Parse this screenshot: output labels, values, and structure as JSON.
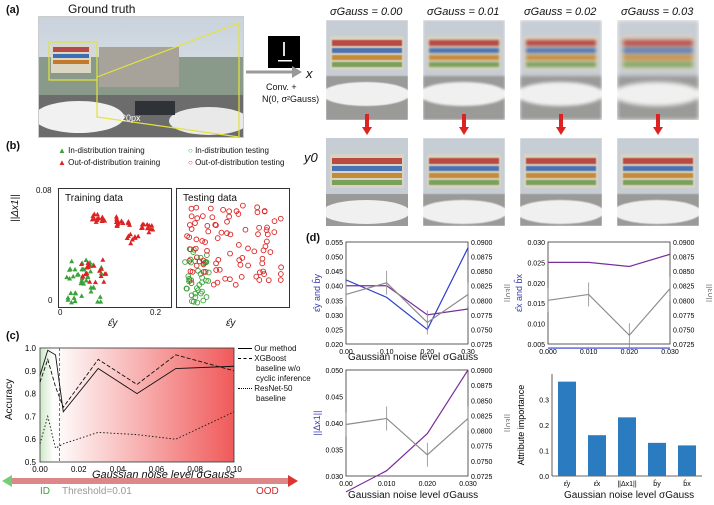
{
  "panel_a": {
    "letter": "(a)",
    "ground_truth_title": "Ground truth",
    "scale_label": "20px",
    "arrow_label": "Conv. +",
    "noise_label": "N(0, σ²Gauss)",
    "row_x_label": "x",
    "row_y_label": "y0",
    "sigma_titles": [
      "σGauss = 0.00",
      "σGauss = 0.01",
      "σGauss = 0.02",
      "σGauss = 0.03"
    ]
  },
  "panel_b": {
    "letter": "(b)",
    "legend": [
      "In-distribution training",
      "Out-of-distribution training",
      "In-distribution testing",
      "Out-of-distribution testing"
    ],
    "ylabel": "||Δx1||",
    "y_tick_max": "0.08",
    "y_tick_min": "0",
    "x_tick_min": "0",
    "x_tick_max": "0.2",
    "xlabel": "ε̂y",
    "training_title": "Training data",
    "testing_title": "Testing data"
  },
  "panel_c": {
    "letter": "(c)",
    "ylabel": "Accuracy",
    "xlabel": "Gaussian noise level σGauss",
    "threshold_label": "Threshold=0.01",
    "id_label": "ID",
    "ood_label": "OOD",
    "legend": [
      "Our method",
      "XGBoost",
      "baseline w/o",
      "cyclic inference",
      "ResNet-50",
      "baseline"
    ]
  },
  "panel_d": {
    "letter": "(d)",
    "xlabel": "Gaussian noise level σGauss",
    "bar_ylabel": "Attribute importance"
  },
  "chart_data": [
    {
      "type": "line",
      "title": "",
      "xlabel": "Gaussian noise level σGauss",
      "ylabel": "Accuracy",
      "xlim": [
        0,
        0.1
      ],
      "ylim": [
        0.5,
        1.0
      ],
      "x_ticks": [
        "0.00",
        "0.02",
        "0.04",
        "0.06",
        "0.08",
        "0.10"
      ],
      "y_ticks": [
        "0.5",
        "0.6",
        "0.7",
        "0.8",
        "0.9",
        "1.0"
      ],
      "threshold": 0.01,
      "series": [
        {
          "name": "Our method",
          "x": [
            0,
            0.004,
            0.008,
            0.012,
            0.03,
            0.05,
            0.07,
            0.1
          ],
          "values": [
            0.88,
            0.99,
            0.97,
            0.72,
            0.91,
            0.8,
            0.91,
            0.92
          ]
        },
        {
          "name": "XGBoost baseline w/o cyclic inference",
          "x": [
            0,
            0.004,
            0.008,
            0.012,
            0.03,
            0.05,
            0.07,
            0.1
          ],
          "values": [
            0.85,
            0.95,
            0.83,
            0.74,
            0.95,
            0.84,
            0.97,
            0.9
          ]
        },
        {
          "name": "ResNet-50 baseline",
          "x": [
            0,
            0.004,
            0.008,
            0.012,
            0.03,
            0.05,
            0.07,
            0.1
          ],
          "values": [
            0.58,
            0.7,
            0.56,
            0.58,
            0.63,
            0.62,
            0.6,
            0.72
          ]
        }
      ]
    },
    {
      "type": "line",
      "title": "",
      "xlabel": "Gaussian noise level σGauss",
      "ylabel": "ε̂y and b̂y",
      "ylabel_right": "||ε0||",
      "x_ticks": [
        "0.00",
        "0.10",
        "0.20",
        "0.30"
      ],
      "y_ticks": [
        "0.020",
        "0.025",
        "0.030",
        "0.035",
        "0.040",
        "0.045",
        "0.050",
        "0.055"
      ],
      "y_ticks_right": [
        "0.0725",
        "0.0750",
        "0.0775",
        "0.0800",
        "0.0825",
        "0.0850",
        "0.0875",
        "0.0900"
      ],
      "series": [
        {
          "name": "ε̂y",
          "color": "#2b3fc9",
          "x": [
            0,
            0.1,
            0.2,
            0.3
          ],
          "values": [
            0.042,
            0.036,
            0.025,
            0.053
          ]
        },
        {
          "name": "b̂y",
          "color": "#7a2e9c",
          "x": [
            0,
            0.1,
            0.2,
            0.3
          ],
          "values": [
            0.04,
            0.04,
            0.03,
            0.032
          ]
        },
        {
          "name": "||ε0||",
          "color": "#8c8c8c",
          "x": [
            0,
            0.1,
            0.2,
            0.3
          ],
          "values": [
            0.081,
            0.083,
            0.0762,
            0.081
          ]
        }
      ]
    },
    {
      "type": "line",
      "title": "",
      "xlabel": "",
      "ylabel": "ε̂x and b̂x",
      "ylabel_right": "||ε0||",
      "x_ticks": [
        "0.000",
        "0.010",
        "0.020",
        "0.030"
      ],
      "y_ticks": [
        "0.005",
        "0.010",
        "0.015",
        "0.020",
        "0.025",
        "0.030"
      ],
      "y_ticks_right": [
        "0.0725",
        "0.0750",
        "0.0775",
        "0.0800",
        "0.0825",
        "0.0850",
        "0.0875",
        "0.0900"
      ],
      "series": [
        {
          "name": "ε̂x",
          "color": "#2b3fc9",
          "x": [
            0,
            0.01,
            0.02,
            0.03
          ],
          "values": [
            0.004,
            0.004,
            0.004,
            0.004
          ]
        },
        {
          "name": "b̂x",
          "color": "#7a2e9c",
          "x": [
            0,
            0.01,
            0.02,
            0.03
          ],
          "values": [
            0.025,
            0.025,
            0.024,
            0.027
          ]
        },
        {
          "name": "||ε0||",
          "color": "#8c8c8c",
          "x": [
            0,
            0.01,
            0.02,
            0.03
          ],
          "values": [
            0.08,
            0.081,
            0.074,
            0.082
          ]
        }
      ]
    },
    {
      "type": "line",
      "title": "",
      "xlabel": "Gaussian noise level σGauss",
      "ylabel": "||Δx1||",
      "ylabel_right": "||ε0||",
      "x_ticks": [
        "0.00",
        "0.010",
        "0.020",
        "0.030"
      ],
      "y_ticks": [
        "0.030",
        "0.035",
        "0.040",
        "0.045",
        "0.050"
      ],
      "y_ticks_right": [
        "0.0725",
        "0.0750",
        "0.0775",
        "0.0800",
        "0.0825",
        "0.0850",
        "0.0875",
        "0.0900"
      ],
      "series": [
        {
          "name": "||Δx1||",
          "color": "#7a2e9c",
          "x": [
            0,
            0.01,
            0.02,
            0.03
          ],
          "values": [
            0.027,
            0.031,
            0.038,
            0.05
          ]
        },
        {
          "name": "||ε0||",
          "color": "#8c8c8c",
          "x": [
            0,
            0.01,
            0.02,
            0.03
          ],
          "values": [
            0.081,
            0.082,
            0.076,
            0.082
          ]
        }
      ]
    },
    {
      "type": "bar",
      "title": "",
      "xlabel": "Gaussian noise level σGauss",
      "ylabel": "Attribute importance",
      "categories": [
        "ε̂y",
        "ε̂x",
        "||Δx1||",
        "b̂y",
        "b̂x"
      ],
      "values": [
        0.37,
        0.16,
        0.23,
        0.13,
        0.12
      ],
      "ylim": [
        0,
        0.4
      ],
      "y_ticks": [
        "0.0",
        "0.1",
        "0.2",
        "0.3"
      ]
    }
  ]
}
